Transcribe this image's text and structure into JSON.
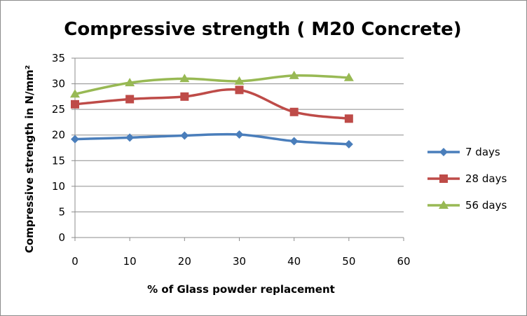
{
  "chart_data": {
    "type": "line",
    "title": "Compressive strength ( M20 Concrete)",
    "xlabel": "% of Glass powder replacement",
    "ylabel": "Compressive strength in N/mm²",
    "x": [
      0,
      10,
      20,
      30,
      40,
      50
    ],
    "xlim": [
      0,
      60
    ],
    "xticks": [
      "0",
      "10",
      "20",
      "30",
      "40",
      "50",
      "60"
    ],
    "ylim": [
      0,
      35
    ],
    "yticks": [
      "0",
      "5",
      "10",
      "15",
      "20",
      "25",
      "30",
      "35"
    ],
    "grid": "horizontal",
    "legend_position": "right",
    "series": [
      {
        "name": "7 days",
        "color": "#4a7ebb",
        "marker": "diamond",
        "values": [
          19.2,
          19.5,
          19.9,
          20.1,
          18.8,
          18.2
        ]
      },
      {
        "name": "28 days",
        "color": "#be4b48",
        "marker": "square",
        "values": [
          26.0,
          27.0,
          27.5,
          28.8,
          24.5,
          23.2
        ]
      },
      {
        "name": "56 days",
        "color": "#98b954",
        "marker": "triangle",
        "values": [
          28.0,
          30.2,
          31.0,
          30.5,
          31.6,
          31.2
        ]
      }
    ]
  }
}
